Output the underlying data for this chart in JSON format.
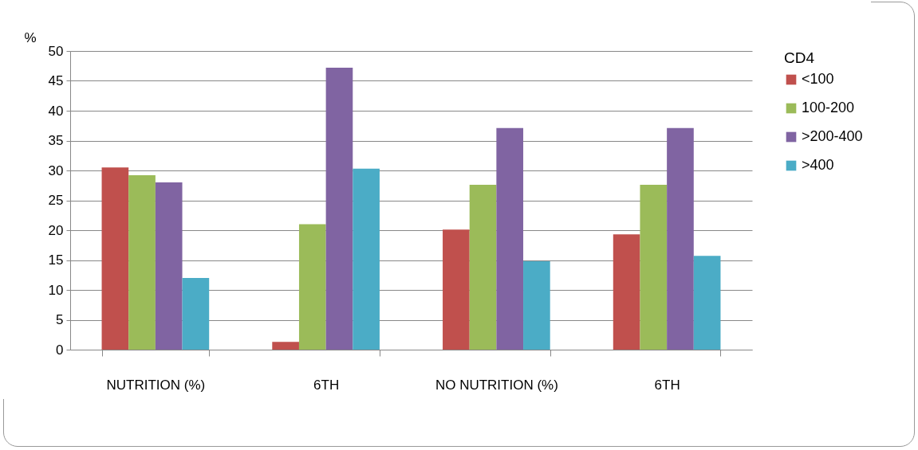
{
  "chart_data": {
    "type": "bar",
    "ylabel": "%",
    "legend_title": "CD4",
    "categories": [
      "NUTRITION (%)",
      "6TH",
      "NO NUTRITION (%)",
      "6TH"
    ],
    "series": [
      {
        "name": "<100",
        "color": "#c0504d",
        "values": [
          30.5,
          1.3,
          20.1,
          19.3
        ]
      },
      {
        "name": "100-200",
        "color": "#9bbb59",
        "values": [
          29.2,
          21,
          27.6,
          27.6
        ]
      },
      {
        "name": ">200-400",
        "color": "#8064a2",
        "values": [
          28,
          47.2,
          37.1,
          37.1
        ]
      },
      {
        "name": ">400",
        "color": "#4bacc6",
        "values": [
          12,
          30.3,
          14.8,
          15.7
        ]
      }
    ],
    "ylim": [
      0,
      50
    ],
    "yticks": [
      0,
      5,
      10,
      15,
      20,
      25,
      30,
      35,
      40,
      45,
      50
    ],
    "grid": "y",
    "legend": "right"
  }
}
